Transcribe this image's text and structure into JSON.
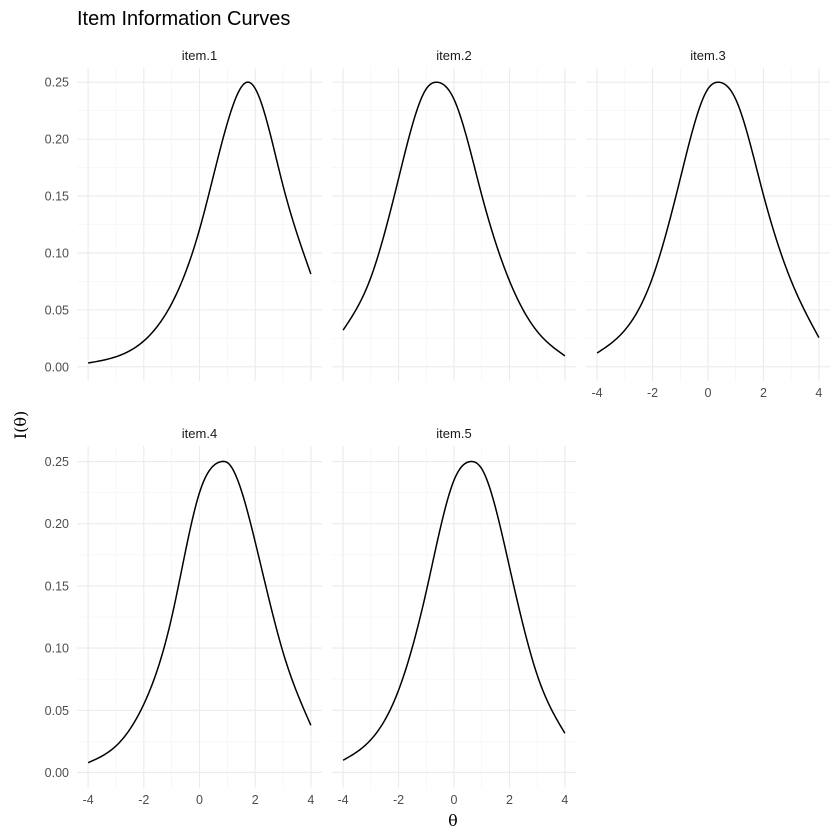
{
  "chart_data": {
    "type": "line",
    "title": "Item Information Curves",
    "xlabel": "θ",
    "ylabel": "I(θ)",
    "xlim": [
      -4,
      4
    ],
    "ylim": [
      0,
      0.25
    ],
    "x_ticks": [
      -4,
      -2,
      0,
      2,
      4
    ],
    "x_tick_labels": [
      "-4",
      "-2",
      "0",
      "2",
      "4"
    ],
    "y_ticks": [
      0,
      0.05,
      0.1,
      0.15,
      0.2,
      0.25
    ],
    "y_tick_labels": [
      "0.00",
      "0.05",
      "0.10",
      "0.15",
      "0.20",
      "0.25"
    ],
    "grid": true,
    "panels": [
      {
        "name": "item.1",
        "x": [
          -4,
          -3,
          -2,
          -1,
          0,
          1,
          1.7,
          2,
          3,
          4
        ],
        "values": [
          0.0033,
          0.0088,
          0.0227,
          0.0555,
          0.1206,
          0.2141,
          0.25,
          0.2445,
          0.1591,
          0.0815
        ]
      },
      {
        "name": "item.2",
        "x": [
          -4,
          -3,
          -2,
          -1,
          -0.6,
          0,
          1,
          2,
          3,
          4
        ],
        "values": [
          0.0322,
          0.0784,
          0.1653,
          0.2442,
          0.25,
          0.235,
          0.1509,
          0.0755,
          0.0311,
          0.0096
        ]
      },
      {
        "name": "item.3",
        "x": [
          -4,
          -3,
          -2,
          -1,
          0,
          0.4,
          1,
          2,
          3,
          4
        ],
        "values": [
          0.0121,
          0.0322,
          0.0784,
          0.1653,
          0.2442,
          0.25,
          0.235,
          0.1509,
          0.0755,
          0.0256
        ]
      },
      {
        "name": "item.4",
        "x": [
          -4,
          -3,
          -2,
          -1,
          0,
          0.8,
          1,
          2,
          3,
          4
        ],
        "values": [
          0.0079,
          0.0213,
          0.0549,
          0.1246,
          0.225,
          0.25,
          0.2492,
          0.1854,
          0.0967,
          0.0379
        ]
      },
      {
        "name": "item.5",
        "x": [
          -4,
          -3,
          -2,
          -1,
          0,
          0.6,
          1,
          2,
          3,
          4
        ],
        "values": [
          0.0098,
          0.0263,
          0.0661,
          0.1456,
          0.235,
          0.25,
          0.2442,
          0.1653,
          0.0784,
          0.0315
        ]
      }
    ]
  }
}
